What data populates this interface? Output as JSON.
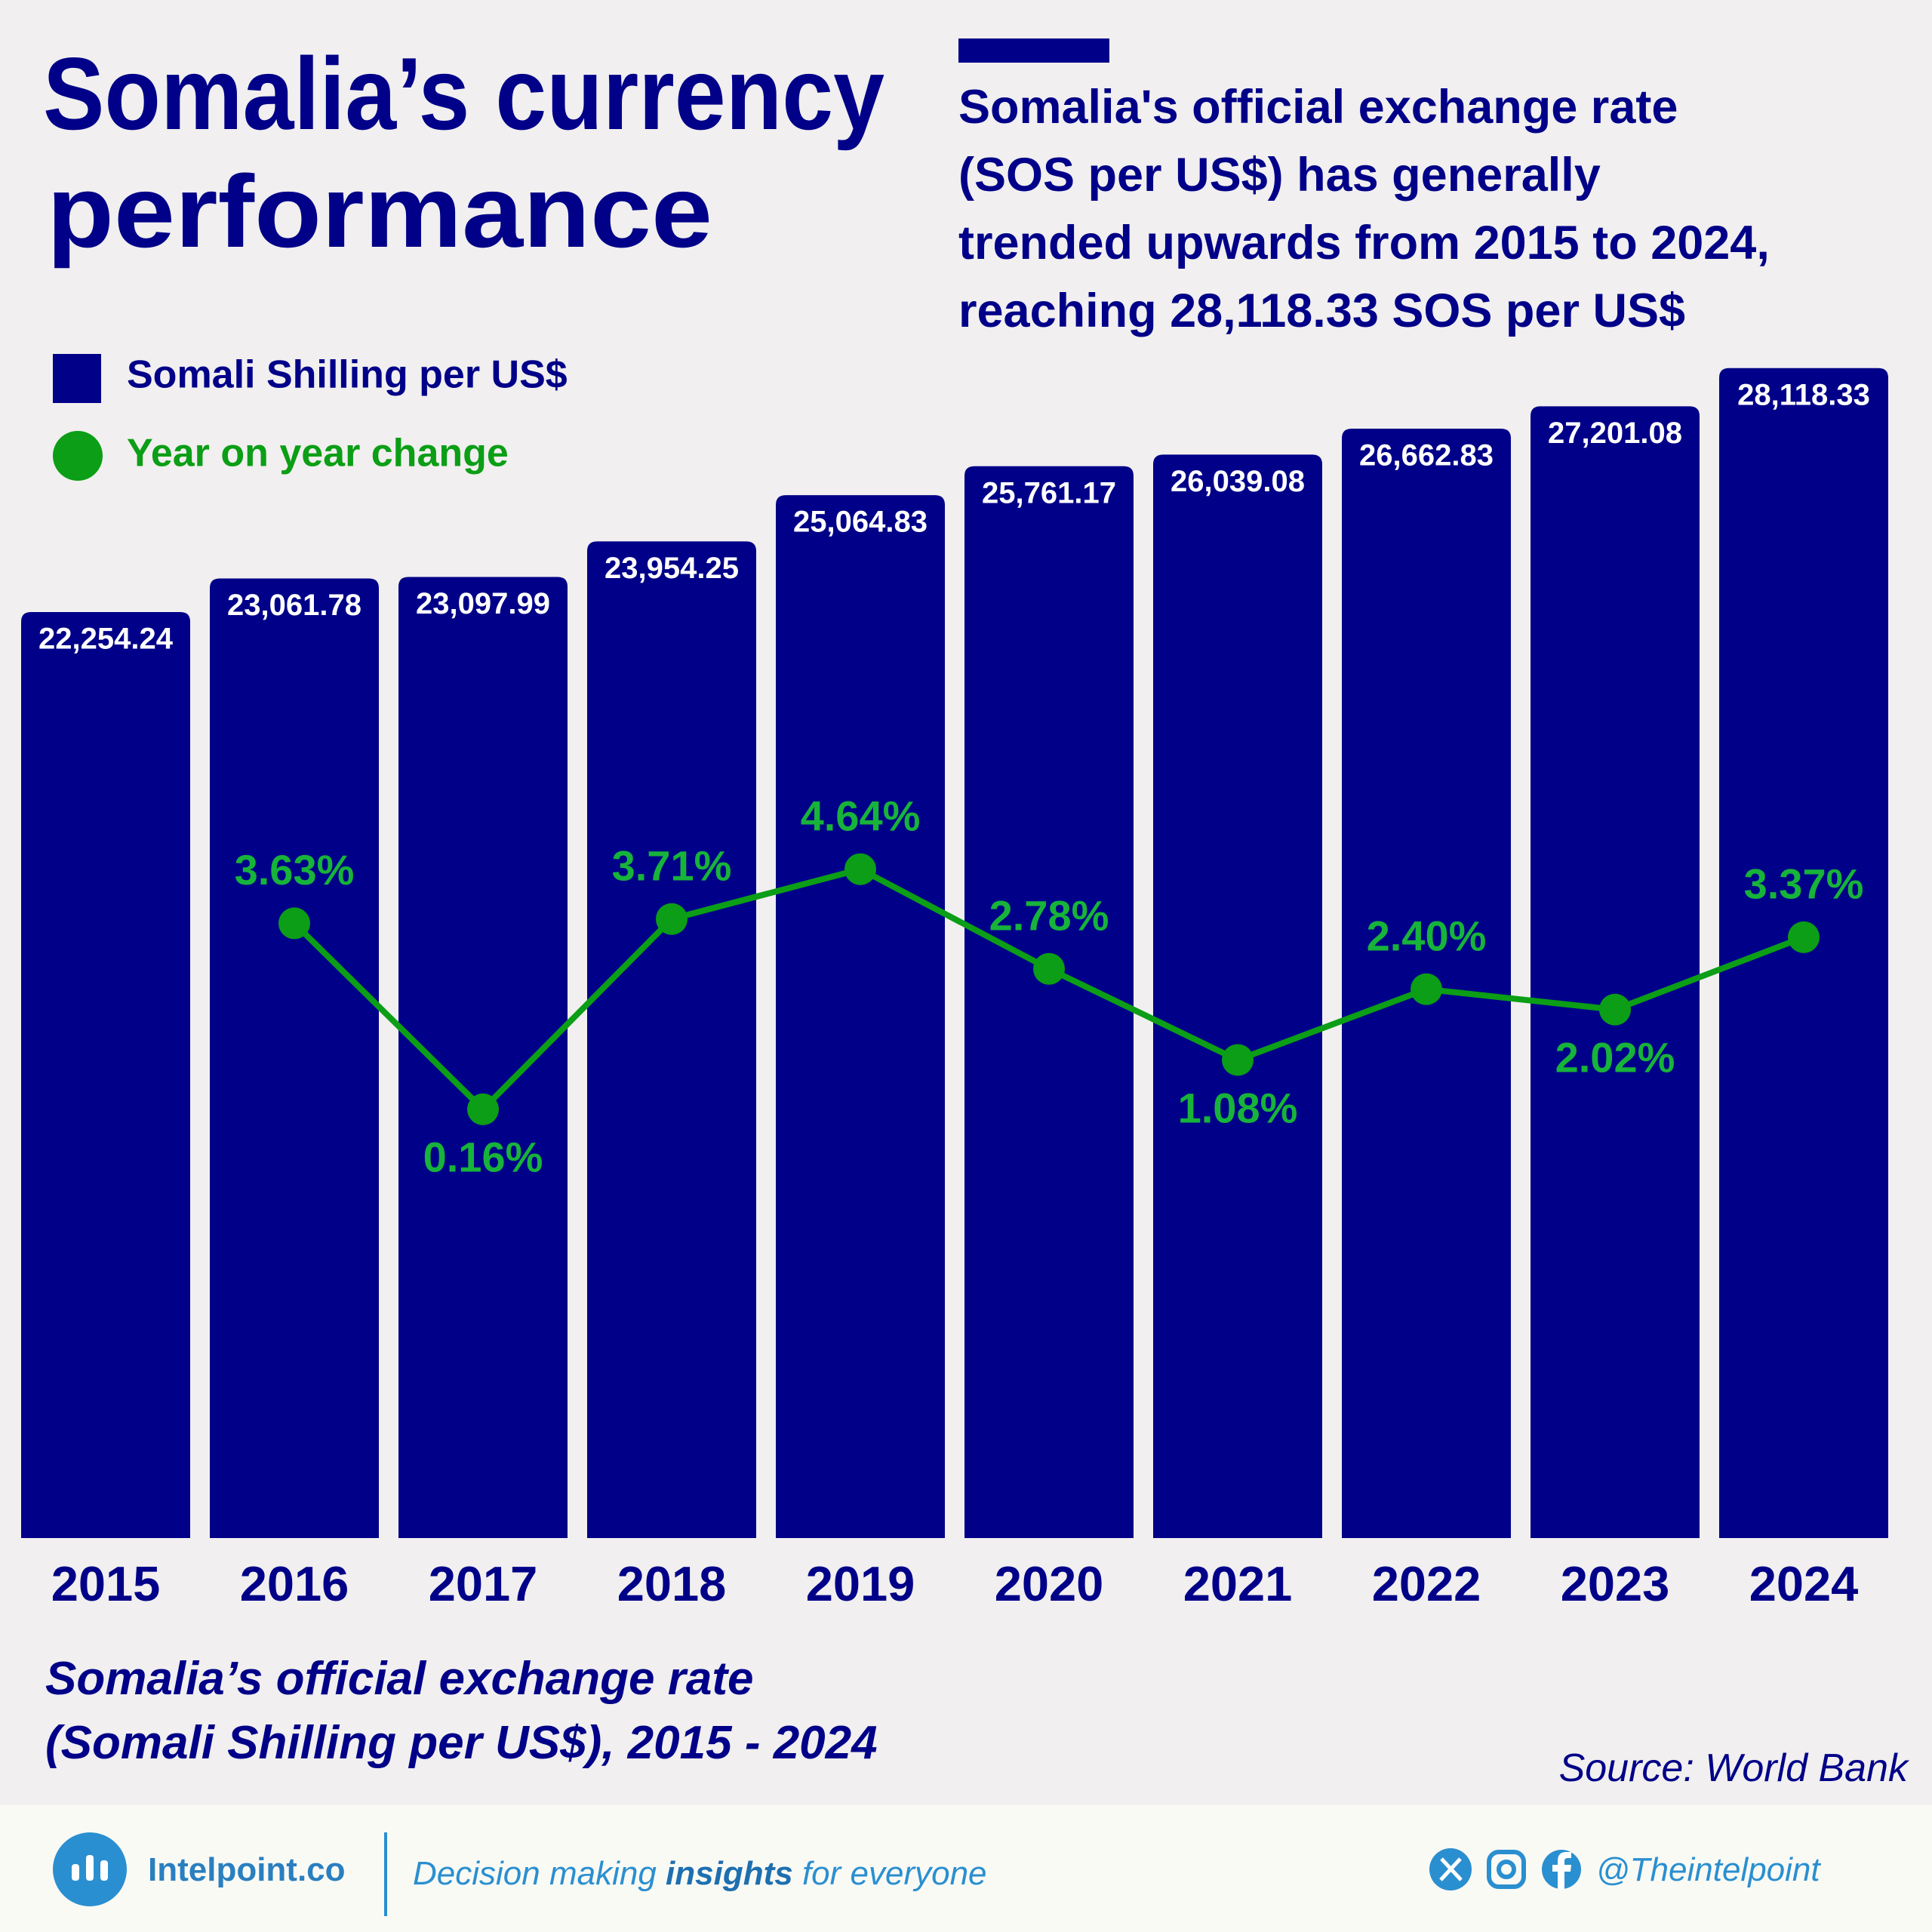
{
  "chart_data": {
    "type": "bar",
    "title": [
      "Somalia’s currency",
      "performance"
    ],
    "subtitle": [
      "Somalia's official exchange rate",
      "(SOS per US$) has generally",
      "trended upwards from 2015 to 2024,",
      "reaching 28,118.33 SOS per US$"
    ],
    "caption": [
      "Somalia’s official exchange rate",
      "(Somali Shilling per US$), 2015 - 2024"
    ],
    "source": "Source: World Bank",
    "categories": [
      "2015",
      "2016",
      "2017",
      "2018",
      "2019",
      "2020",
      "2021",
      "2022",
      "2023",
      "2024"
    ],
    "series": [
      {
        "name": "Somali Shilling per US$",
        "color": "#000088",
        "type": "bar",
        "values": [
          22254.24,
          23061.78,
          23097.99,
          23954.25,
          25064.83,
          25761.17,
          26039.08,
          26662.83,
          27201.08,
          28118.33
        ],
        "value_labels": [
          "22,254.24",
          "23,061.78",
          "23,097.99",
          "23,954.25",
          "25,064.83",
          "25,761.17",
          "26,039.08",
          "26,662.83",
          "27,201.08",
          "28,118.33"
        ]
      },
      {
        "name": "Year on year change",
        "color": "#0b9e16",
        "type": "line",
        "axis": "y2",
        "values": [
          null,
          3.63,
          0.16,
          3.71,
          4.64,
          2.78,
          1.08,
          2.4,
          2.02,
          3.37
        ],
        "value_labels": [
          null,
          "3.63%",
          "0.16%",
          "3.71%",
          "4.64%",
          "2.78%",
          "1.08%",
          "2.40%",
          "2.02%",
          "3.37%"
        ]
      }
    ],
    "ylim": [
      0,
      30000
    ],
    "y2lim": [
      -7.84,
      15.45
    ],
    "grid": false
  },
  "footer": {
    "brand": "Intelpoint.co",
    "tagline": [
      "Decision making ",
      "insights",
      " for everyone"
    ],
    "handle": "@Theintelpoint"
  }
}
